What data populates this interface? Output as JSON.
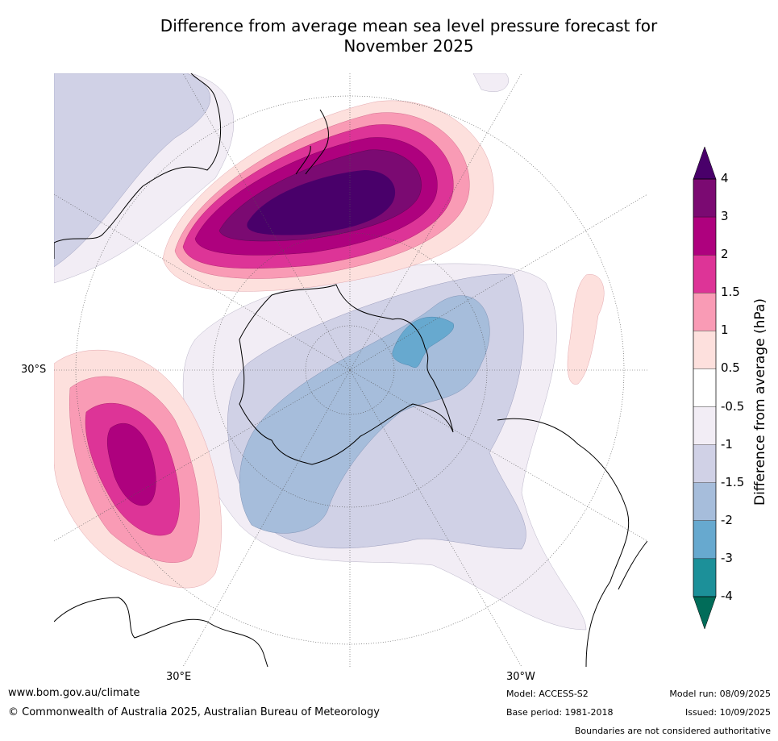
{
  "title_line1": "Difference from average mean sea level pressure forecast for",
  "title_line2": "November 2025",
  "labels": {
    "lat_30s": "30°S",
    "lon_30e": "30°E",
    "lon_30w": "30°W"
  },
  "colorbar": {
    "title": "Difference from average (hPa)",
    "ticks": [
      "4",
      "3",
      "2",
      "1.5",
      "1",
      "0.5",
      "-0.5",
      "-1",
      "-1.5",
      "-2",
      "-3",
      "-4"
    ],
    "bins": [
      {
        "from": 3,
        "to": 4,
        "color": "#7b0a72"
      },
      {
        "from": 2,
        "to": 3,
        "color": "#ae017e"
      },
      {
        "from": 1.5,
        "to": 2,
        "color": "#dd3497"
      },
      {
        "from": 1,
        "to": 1.5,
        "color": "#f99bb5"
      },
      {
        "from": 0.5,
        "to": 1,
        "color": "#fde0dd"
      },
      {
        "from": -0.5,
        "to": 0.5,
        "color": "#ffffff"
      },
      {
        "from": -1,
        "to": -0.5,
        "color": "#f2edf5"
      },
      {
        "from": -1.5,
        "to": -1,
        "color": "#d0d1e6"
      },
      {
        "from": -2,
        "to": -1.5,
        "color": "#a6bddb"
      },
      {
        "from": -3,
        "to": -2,
        "color": "#67a9cf"
      },
      {
        "from": -4,
        "to": -3,
        "color": "#1c9099"
      }
    ],
    "over_color": "#49006a",
    "under_color": "#016c59"
  },
  "footer": {
    "website": "www.bom.gov.au/climate",
    "copyright": "© Commonwealth of Australia 2025, Australian Bureau of Meteorology",
    "model": "Model: ACCESS-S2",
    "base_period": "Base period: 1981-2018",
    "model_run": "Model run: 08/09/2025",
    "issued": "Issued: 10/09/2025",
    "disclaimer": "Boundaries are not considered authoritative"
  }
}
